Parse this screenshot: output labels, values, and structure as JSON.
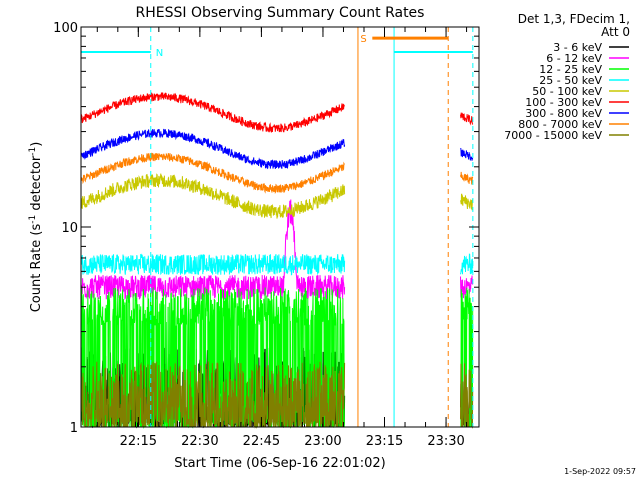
{
  "chart_data": {
    "type": "line",
    "title": "RHESSI Observing Summary Count Rates",
    "xlabel": "Start Time (06-Sep-16 22:01:02)",
    "ylabel_main": "Count Rate (s",
    "ylabel_sup1": "-1",
    "ylabel_mid": " detector",
    "ylabel_sup2": "-1",
    "ylabel_end": ")",
    "yscale": "log",
    "ylim": [
      1,
      100
    ],
    "xlim_minutes": [
      0,
      97
    ],
    "x_ticks": [
      {
        "minutes": 13.97,
        "label": "22:15"
      },
      {
        "minutes": 28.97,
        "label": "22:30"
      },
      {
        "minutes": 43.97,
        "label": "22:45"
      },
      {
        "minutes": 58.97,
        "label": "23:00"
      },
      {
        "minutes": 73.97,
        "label": "23:15"
      },
      {
        "minutes": 88.97,
        "label": "23:30"
      }
    ],
    "y_ticks": [
      {
        "value": 100,
        "label": "100"
      },
      {
        "value": 10,
        "label": "10"
      },
      {
        "value": 1,
        "label": "1"
      }
    ],
    "legend_header": [
      "Det 1,3, FDecim 1,",
      "Att 0"
    ],
    "legend_position": "right",
    "series": [
      {
        "name": "3 - 6 keV",
        "color": "#000000",
        "level": 1.6,
        "noise": 0.45,
        "spiky": true
      },
      {
        "name": "6 - 12 keV",
        "color": "#ff00ff",
        "level": 5.0,
        "noise": 0.14,
        "spiky": false
      },
      {
        "name": "12 - 25 keV",
        "color": "#00ff00",
        "level": 4.0,
        "noise": 0.22,
        "spiky": true
      },
      {
        "name": "25 - 50 keV",
        "color": "#00ffff",
        "level": 6.5,
        "noise": 0.12,
        "spiky": false
      },
      {
        "name": "50 - 100 keV",
        "color": "#c8c800",
        "level": 14.5,
        "noise": 0.08,
        "spiky": false
      },
      {
        "name": "100 - 300 keV",
        "color": "#ff0000",
        "level": 38,
        "noise": 0.05,
        "spiky": false
      },
      {
        "name": "300 - 800 keV",
        "color": "#0000ff",
        "level": 25,
        "noise": 0.05,
        "spiky": false
      },
      {
        "name": "800 - 7000 keV",
        "color": "#ff8000",
        "level": 19,
        "noise": 0.05,
        "spiky": false
      },
      {
        "name": "7000 - 15000 keV",
        "color": "#808000",
        "level": 1.5,
        "noise": 0.35,
        "spiky": true
      }
    ],
    "data_intervals_minutes": [
      [
        0,
        64.3
      ],
      [
        92.5,
        95.5
      ]
    ],
    "bursts": [
      {
        "series": "6 - 12 keV",
        "center_minutes": 51,
        "peak": 12,
        "width_minutes": 1.8
      }
    ],
    "night_marker": {
      "label": "N",
      "color": "#00ffff",
      "start_minutes": 0,
      "end_minutes": 17,
      "level": 75
    },
    "saa_marker": {
      "label": "S",
      "color": "#ff8000",
      "start_minutes": 71,
      "end_minutes": 89.5,
      "level": 88
    },
    "night_marker_2": {
      "color": "#00ffff",
      "start_minutes": 76.3,
      "end_minutes": 95.5,
      "level": 75
    },
    "vlines": [
      {
        "minutes": 17,
        "color": "#00ffff",
        "style": "dashed"
      },
      {
        "minutes": 67.5,
        "color": "#ff8000",
        "style": "solid"
      },
      {
        "minutes": 76.3,
        "color": "#00ffff",
        "style": "solid"
      },
      {
        "minutes": 89.5,
        "color": "#ff8000",
        "style": "dashed"
      },
      {
        "minutes": 95.5,
        "color": "#00ffff",
        "style": "dashed"
      }
    ],
    "footer": "1-Sep-2022 09:57"
  }
}
